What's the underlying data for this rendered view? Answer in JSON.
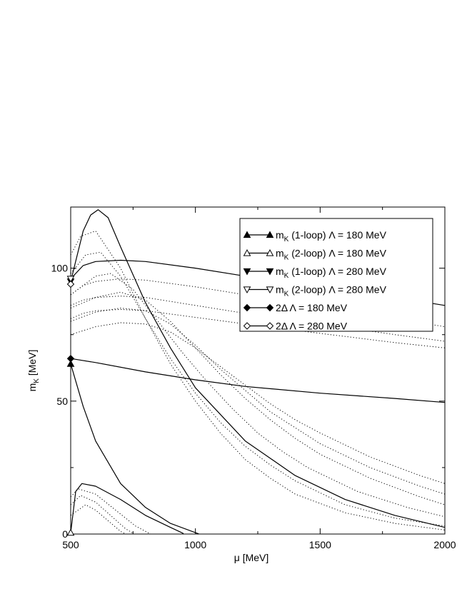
{
  "chart_data": {
    "type": "line",
    "xlabel": "μ  [MeV]",
    "ylabel": "m_K [MeV]",
    "ylabel_main": "m",
    "ylabel_sub": "K",
    "ylabel_unit": " [MeV]",
    "xlim": [
      500,
      2000
    ],
    "ylim": [
      0,
      123
    ],
    "xticks": [
      500,
      1000,
      1500,
      2000
    ],
    "yticks": [
      0,
      50,
      100
    ],
    "xtick_labels": [
      "500",
      "1000",
      "1500",
      "2000"
    ],
    "ytick_labels": [
      "0",
      "50",
      "100"
    ],
    "legend_position": "top-right",
    "legend": [
      {
        "main": "m",
        "sub": "K",
        "rest": " (1-loop) Λ = 180 MeV",
        "marker": "triangle-up-filled"
      },
      {
        "main": "m",
        "sub": "K",
        "rest": " (2-loop) Λ = 180 MeV",
        "marker": "triangle-up-open"
      },
      {
        "main": "m",
        "sub": "K",
        "rest": " (1-loop) Λ = 280 MeV",
        "marker": "triangle-down-filled"
      },
      {
        "main": "m",
        "sub": "K",
        "rest": " (2-loop) Λ = 280 MeV",
        "marker": "triangle-down-open"
      },
      {
        "main": "2Δ",
        "sub": "",
        "rest": "  Λ = 180 MeV",
        "marker": "diamond-filled"
      },
      {
        "main": "2Δ",
        "sub": "",
        "rest": "  Λ = 280 MeV",
        "marker": "diamond-open"
      }
    ],
    "series": [
      {
        "style": "solid",
        "marker": "triangle-up-filled",
        "x": [
          500,
          550,
          600,
          700,
          800,
          900,
          1000,
          1100,
          1150
        ],
        "y": [
          64,
          48,
          35,
          19,
          10,
          4,
          0.5,
          -3,
          -5
        ]
      },
      {
        "style": "solid",
        "marker": "triangle-up-open",
        "x": [
          500,
          520,
          545,
          600,
          700,
          800,
          900,
          950,
          960
        ],
        "y": [
          0.5,
          16,
          19,
          18,
          13,
          7,
          2.5,
          0.3,
          -1
        ]
      },
      {
        "style": "solid",
        "marker": "triangle-down-filled",
        "x": [
          500,
          550,
          580,
          610,
          650,
          700,
          800,
          900,
          1000,
          1200,
          1400,
          1600,
          1800,
          2000
        ],
        "y": [
          95,
          114,
          120,
          122,
          119,
          108,
          87,
          70,
          55,
          35,
          22,
          13,
          7,
          2.5
        ]
      },
      {
        "style": "solid",
        "marker": "triangle-down-open",
        "x": [
          500,
          550,
          600,
          700,
          800,
          1000,
          1200,
          1500,
          1800,
          2000
        ],
        "y": [
          96,
          101,
          102.5,
          103,
          102.5,
          100,
          97,
          93,
          89,
          86
        ]
      },
      {
        "style": "solid",
        "marker": "diamond-filled",
        "x": [
          500,
          600,
          800,
          1000,
          1200,
          1500,
          1800,
          2000
        ],
        "y": [
          66,
          64.5,
          61,
          58,
          55.5,
          53,
          51,
          49.5
        ]
      },
      {
        "style": "solid",
        "marker": "diamond-open",
        "x": [
          500,
          505
        ],
        "y": [
          94,
          95
        ]
      },
      {
        "style": "dotted",
        "x": [
          500,
          560,
          600,
          650,
          700,
          760
        ],
        "y": [
          7,
          11,
          9,
          5,
          1,
          -2
        ]
      },
      {
        "style": "dotted",
        "x": [
          500,
          540,
          600,
          660,
          720,
          790
        ],
        "y": [
          11,
          14.5,
          12,
          7,
          2,
          -2
        ]
      },
      {
        "style": "dotted",
        "x": [
          500,
          530,
          600,
          680,
          760,
          860
        ],
        "y": [
          14,
          17,
          15,
          9,
          3,
          -2
        ]
      },
      {
        "style": "dotted",
        "x": [
          500,
          540,
          600,
          700,
          800,
          900,
          1000,
          1100,
          1200,
          1300,
          1400,
          1600,
          1800,
          2000
        ],
        "y": [
          105,
          112,
          114,
          100,
          81,
          64,
          50,
          38,
          28,
          21,
          15,
          8,
          4,
          1.5
        ]
      },
      {
        "style": "dotted",
        "x": [
          500,
          560,
          620,
          700,
          800,
          900,
          1000,
          1100,
          1200,
          1300,
          1400,
          1600,
          1800,
          2000
        ],
        "y": [
          98,
          105,
          106,
          97,
          81,
          66,
          53,
          42,
          33,
          26,
          20,
          11,
          6,
          3
        ]
      },
      {
        "style": "dotted",
        "x": [
          500,
          600,
          660,
          750,
          850,
          950,
          1050,
          1150,
          1250,
          1350,
          1450,
          1650,
          1850,
          2000
        ],
        "y": [
          90,
          97,
          98,
          92,
          80,
          68,
          57,
          47,
          38,
          31,
          25,
          16,
          10,
          6.5
        ]
      },
      {
        "style": "dotted",
        "x": [
          500,
          600,
          700,
          800,
          900,
          1000,
          1100,
          1200,
          1300,
          1400,
          1500,
          1700,
          1900,
          2000
        ],
        "y": [
          85,
          89,
          91,
          88,
          80,
          70,
          60,
          51,
          43,
          36,
          30,
          21,
          14,
          11
        ]
      },
      {
        "style": "dotted",
        "x": [
          500,
          600,
          700,
          800,
          900,
          1000,
          1100,
          1200,
          1300,
          1400,
          1500,
          1700,
          1900,
          2000
        ],
        "y": [
          80,
          83.5,
          85,
          84,
          79,
          71,
          62,
          54,
          46,
          40,
          34,
          25,
          18,
          15
        ]
      },
      {
        "style": "dotted",
        "x": [
          500,
          600,
          700,
          800,
          900,
          1000,
          1100,
          1200,
          1300,
          1400,
          1500,
          1700,
          1900,
          2000
        ],
        "y": [
          75,
          78,
          79.5,
          79,
          76,
          70,
          63,
          56,
          49,
          43,
          38,
          29,
          22,
          19
        ]
      },
      {
        "style": "dotted",
        "x": [
          500,
          550,
          600,
          700,
          800,
          1000,
          1200,
          1500,
          1800,
          2000
        ],
        "y": [
          90,
          93.5,
          95,
          96,
          95.5,
          93,
          90,
          85.5,
          81,
          78
        ]
      },
      {
        "style": "dotted",
        "x": [
          500,
          550,
          600,
          700,
          800,
          1000,
          1200,
          1500,
          1800,
          2000
        ],
        "y": [
          86,
          88,
          89,
          89.5,
          89,
          86,
          83,
          79,
          75,
          72.5
        ]
      },
      {
        "style": "dotted",
        "x": [
          500,
          550,
          600,
          700,
          800,
          1000,
          1200,
          1500,
          1800,
          2000
        ],
        "y": [
          81,
          83,
          84,
          84.5,
          84,
          81.5,
          79,
          75.5,
          72,
          70
        ]
      }
    ]
  }
}
